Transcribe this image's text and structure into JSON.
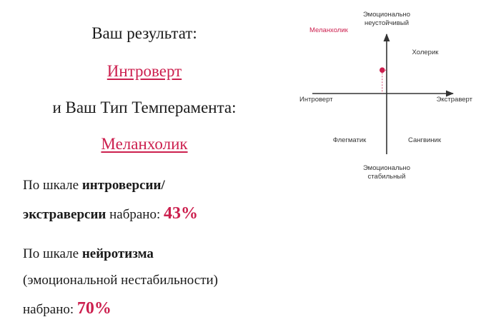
{
  "result": {
    "heading": "Ваш результат:",
    "type_link": "Интроверт",
    "subheading": "и Ваш Тип Темперамента:",
    "temperament_link": "Меланхолик"
  },
  "scales": {
    "introversion": {
      "prefix": "По шкале ",
      "bold_line1": "интроверсии/",
      "bold_line2": "экстраверсии",
      "suffix": " набрано: ",
      "value": "43%"
    },
    "neuroticism": {
      "prefix": "По шкале ",
      "bold": "нейротизма",
      "line2": "(эмоциональной нестабильности)",
      "line3": "набрано: ",
      "value": "70%"
    }
  },
  "diagram": {
    "top_label_1": "Эмоционально",
    "top_label_2": "неустойчивый",
    "bottom_label_1": "Эмоционально",
    "bottom_label_2": "стабильный",
    "left_label": "Интроверт",
    "right_label": "Экстраверт",
    "quadrant_top_left": "Меланхолик",
    "quadrant_top_right": "Холерик",
    "quadrant_bottom_left": "Флегматик",
    "quadrant_bottom_right": "Сангвиник",
    "marker_extraversion_pct": 43,
    "marker_neuroticism_pct": 70,
    "accent_color": "#cc1f4e"
  }
}
